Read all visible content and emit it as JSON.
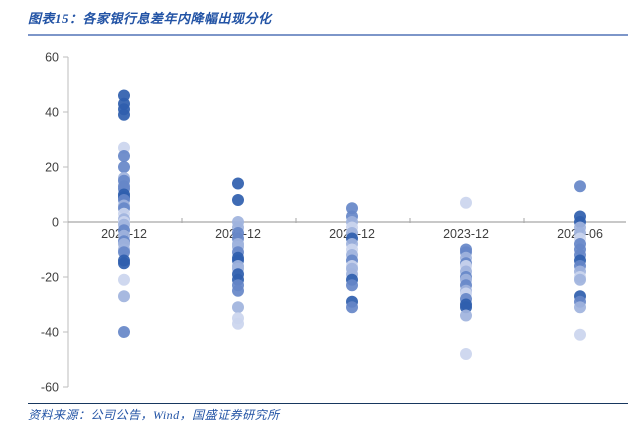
{
  "header": {
    "title": "图表15：各家银行息差年内降幅出现分化"
  },
  "footer": {
    "source": "资料来源：公司公告，Wind，国盛证券研究所"
  },
  "colors": {
    "title_blue": "#2253a5",
    "top_rule": "#7d96c9",
    "bottom_rule": "#17375e",
    "axis_line": "#bdbdbd",
    "zero_line": "#a6a6a6",
    "tick_label": "#3f3f3f"
  },
  "chart_data": {
    "type": "scatter",
    "title": "图表15：各家银行息差年内降幅出现分化",
    "xlabel": "",
    "ylabel": "",
    "ylim": [
      -60,
      60
    ],
    "yticks": [
      60,
      40,
      20,
      0,
      -20,
      -40,
      -60
    ],
    "grid": "zero-line-only",
    "legend": "none",
    "categories": [
      "2020-12",
      "2021-12",
      "2022-12",
      "2023-12",
      "2024-06"
    ],
    "point_colors": {
      "dark": "#2f5eae",
      "medium": "#6687c8",
      "light": "#9fb3dd",
      "xlight": "#cbd5ee"
    },
    "series": [
      {
        "category": "2020-12",
        "points": [
          [
            46,
            "dark"
          ],
          [
            43,
            "dark"
          ],
          [
            41,
            "dark"
          ],
          [
            39,
            "dark"
          ],
          [
            27,
            "xlight"
          ],
          [
            24,
            "medium"
          ],
          [
            20,
            "medium"
          ],
          [
            16,
            "light"
          ],
          [
            15,
            "medium"
          ],
          [
            13,
            "medium"
          ],
          [
            12,
            "medium"
          ],
          [
            10,
            "dark"
          ],
          [
            9,
            "dark"
          ],
          [
            8,
            "medium"
          ],
          [
            6,
            "light"
          ],
          [
            5,
            "medium"
          ],
          [
            3,
            "xlight"
          ],
          [
            1,
            "light"
          ],
          [
            0,
            "xlight"
          ],
          [
            -1,
            "light"
          ],
          [
            -3,
            "medium"
          ],
          [
            -5,
            "light"
          ],
          [
            -7,
            "medium"
          ],
          [
            -8,
            "light"
          ],
          [
            -10,
            "light"
          ],
          [
            -11,
            "medium"
          ],
          [
            -14,
            "dark"
          ],
          [
            -15,
            "dark"
          ],
          [
            -21,
            "xlight"
          ],
          [
            -27,
            "light"
          ],
          [
            -40,
            "medium"
          ]
        ]
      },
      {
        "category": "2021-12",
        "points": [
          [
            14,
            "dark"
          ],
          [
            8,
            "dark"
          ],
          [
            0,
            "light"
          ],
          [
            -2,
            "light"
          ],
          [
            -4,
            "medium"
          ],
          [
            -6,
            "medium"
          ],
          [
            -8,
            "light"
          ],
          [
            -9,
            "light"
          ],
          [
            -11,
            "medium"
          ],
          [
            -13,
            "dark"
          ],
          [
            -14,
            "dark"
          ],
          [
            -16,
            "light"
          ],
          [
            -17,
            "light"
          ],
          [
            -19,
            "dark"
          ],
          [
            -21,
            "dark"
          ],
          [
            -23,
            "medium"
          ],
          [
            -25,
            "medium"
          ],
          [
            -31,
            "light"
          ],
          [
            -35,
            "xlight"
          ],
          [
            -37,
            "xlight"
          ]
        ]
      },
      {
        "category": "2022-12",
        "points": [
          [
            5,
            "medium"
          ],
          [
            2,
            "medium"
          ],
          [
            0,
            "light"
          ],
          [
            -2,
            "xlight"
          ],
          [
            -4,
            "light"
          ],
          [
            -6,
            "dark"
          ],
          [
            -8,
            "light"
          ],
          [
            -10,
            "xlight"
          ],
          [
            -12,
            "light"
          ],
          [
            -14,
            "medium"
          ],
          [
            -16,
            "xlight"
          ],
          [
            -17,
            "light"
          ],
          [
            -19,
            "light"
          ],
          [
            -21,
            "dark"
          ],
          [
            -23,
            "medium"
          ],
          [
            -29,
            "dark"
          ],
          [
            -31,
            "medium"
          ]
        ]
      },
      {
        "category": "2023-12",
        "points": [
          [
            7,
            "xlight"
          ],
          [
            -10,
            "medium"
          ],
          [
            -11,
            "medium"
          ],
          [
            -13,
            "light"
          ],
          [
            -15,
            "medium"
          ],
          [
            -16,
            "xlight"
          ],
          [
            -18,
            "light"
          ],
          [
            -20,
            "medium"
          ],
          [
            -21,
            "light"
          ],
          [
            -23,
            "medium"
          ],
          [
            -25,
            "light"
          ],
          [
            -26,
            "xlight"
          ],
          [
            -28,
            "medium"
          ],
          [
            -30,
            "dark"
          ],
          [
            -31,
            "dark"
          ],
          [
            -34,
            "light"
          ],
          [
            -48,
            "xlight"
          ]
        ]
      },
      {
        "category": "2024-06",
        "points": [
          [
            13,
            "medium"
          ],
          [
            2,
            "dark"
          ],
          [
            0,
            "dark"
          ],
          [
            -2,
            "light"
          ],
          [
            -4,
            "light"
          ],
          [
            -6,
            "xlight"
          ],
          [
            -8,
            "medium"
          ],
          [
            -10,
            "medium"
          ],
          [
            -12,
            "medium"
          ],
          [
            -14,
            "dark"
          ],
          [
            -16,
            "medium"
          ],
          [
            -18,
            "light"
          ],
          [
            -20,
            "xlight"
          ],
          [
            -21,
            "light"
          ],
          [
            -27,
            "dark"
          ],
          [
            -29,
            "medium"
          ],
          [
            -31,
            "light"
          ],
          [
            -41,
            "xlight"
          ]
        ]
      }
    ]
  }
}
